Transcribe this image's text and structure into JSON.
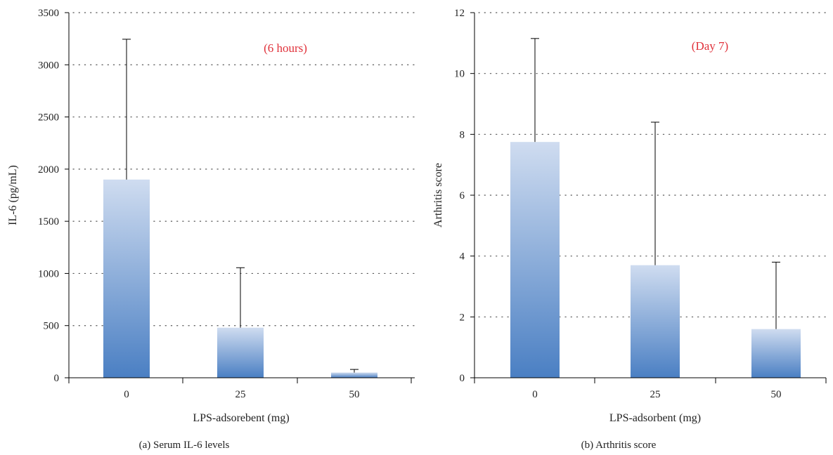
{
  "colors": {
    "bar_top": "#cfdcf0",
    "bar_bottom": "#4a7fc3",
    "axis": "#000000",
    "grid": "#555555",
    "annotation": "#e0313a"
  },
  "chart_data": [
    {
      "type": "bar",
      "categories": [
        "0",
        "25",
        "50"
      ],
      "values": [
        1900,
        480,
        50
      ],
      "error_upper": [
        3245,
        1055,
        80
      ],
      "xlabel": "LPS-adsorebent (mg)",
      "ylabel": "IL-6 (pg/mL)",
      "ylim": [
        0,
        3500
      ],
      "yticks": [
        "0",
        "500",
        "1000",
        "1500",
        "2000",
        "2500",
        "3000",
        "3500"
      ],
      "annotation": "(6 hours)",
      "caption": "(a)  Serum IL-6 levels",
      "grid": "horizontal dotted"
    },
    {
      "type": "bar",
      "categories": [
        "0",
        "25",
        "50"
      ],
      "values": [
        7.75,
        3.7,
        1.6
      ],
      "error_upper": [
        11.15,
        8.4,
        3.8
      ],
      "xlabel": "LPS-adsorbent (mg)",
      "ylabel": "Arthritis score",
      "ylim": [
        0,
        12
      ],
      "yticks": [
        "0",
        "2",
        "4",
        "6",
        "8",
        "10",
        "12"
      ],
      "annotation": "(Day 7)",
      "caption": "(b)  Arthritis score",
      "grid": "horizontal dotted"
    }
  ]
}
